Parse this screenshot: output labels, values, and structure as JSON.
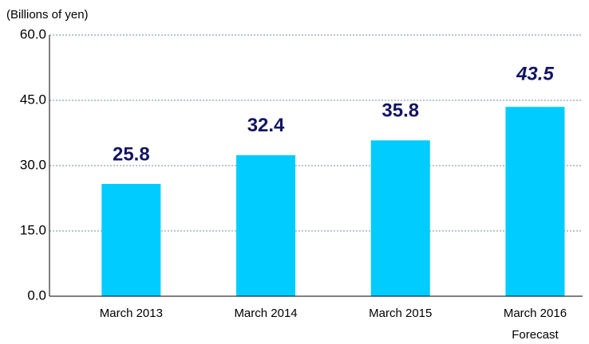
{
  "chart_data": {
    "type": "bar",
    "unit_label": "(Billions of yen)",
    "categories": [
      "March 2013",
      "March 2014",
      "March 2015",
      "March 2016"
    ],
    "category_notes": [
      null,
      null,
      null,
      "Forecast"
    ],
    "values": [
      25.8,
      32.4,
      35.8,
      43.5
    ],
    "color": "#00ccff",
    "ylim": [
      0,
      60
    ],
    "yticks": [
      {
        "value": 0,
        "label": "0.0"
      },
      {
        "value": 15,
        "label": "15.0"
      },
      {
        "value": 30,
        "label": "30.0"
      },
      {
        "value": 45,
        "label": "45.0"
      },
      {
        "value": 60,
        "label": "60.0"
      }
    ],
    "grid": true
  }
}
